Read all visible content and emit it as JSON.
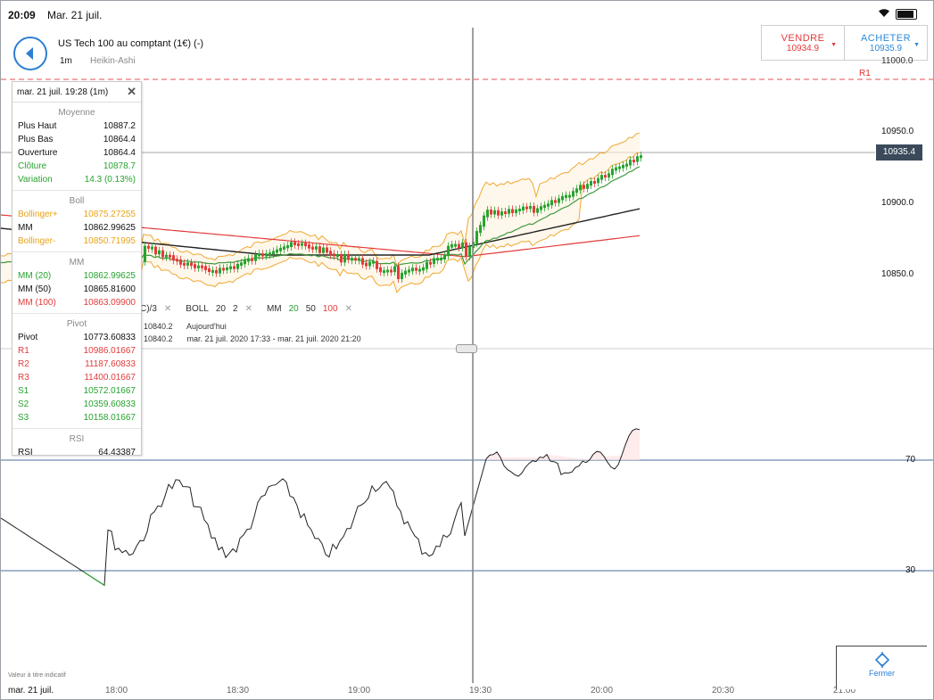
{
  "status_bar": {
    "time": "20:09",
    "date": "Mar. 21 juil."
  },
  "header": {
    "instrument": "US Tech 100 au comptant (1€) (-)",
    "period": "1m",
    "chart_type": "Heikin-Ashi"
  },
  "trade": {
    "sell": {
      "label": "VENDRE",
      "price": "10934.9"
    },
    "buy": {
      "label": "ACHETER",
      "price": "10935.9"
    }
  },
  "price_axis": {
    "top_cut": "11000.0",
    "labels": [
      "10950.0",
      "10900.0",
      "10850.0"
    ],
    "current_price": "10935.4",
    "r1_label": "R1"
  },
  "legend": {
    "prefix": "C)/3",
    "boll_label": "BOLL",
    "boll_params": [
      "20",
      "2"
    ],
    "mm_label": "MM",
    "mm_params": [
      "20",
      "50",
      "100"
    ]
  },
  "info_rows": [
    {
      "value": "10840.2",
      "text": "Aujourd'hui"
    },
    {
      "value": "10840.2",
      "text": "mar. 21 juil. 2020 17:33 - mar. 21 juil. 2020 21:20"
    }
  ],
  "rsi_axis": {
    "upper": "70",
    "lower": "30"
  },
  "time_axis": [
    "18:00",
    "18:30",
    "19:00",
    "19:30",
    "20:00",
    "20:30",
    "21:00"
  ],
  "footer": {
    "date": "mar. 21 juil.",
    "disclaimer": "Valeur à titre indicatif",
    "close_label": "Fermer"
  },
  "tooltip": {
    "header": "mar. 21 juil. 19:28 (1m)",
    "sections": [
      {
        "title": "Moyenne",
        "rows": [
          {
            "label": "Plus Haut",
            "value": "10887.2",
            "color": "black"
          },
          {
            "label": "Plus Bas",
            "value": "10864.4",
            "color": "black"
          },
          {
            "label": "Ouverture",
            "value": "10864.4",
            "color": "black"
          },
          {
            "label": "Clôture",
            "value": "10878.7",
            "color": "green"
          },
          {
            "label": "Variation",
            "value": "14.3 (0.13%)",
            "color": "green"
          }
        ]
      },
      {
        "title": "Boll",
        "rows": [
          {
            "label": "Bollinger+",
            "value": "10875.27255",
            "color": "orange"
          },
          {
            "label": "MM",
            "value": "10862.99625",
            "color": "black"
          },
          {
            "label": "Bollinger-",
            "value": "10850.71995",
            "color": "orange"
          }
        ]
      },
      {
        "title": "MM",
        "rows": [
          {
            "label": "MM (20)",
            "value": "10862.99625",
            "color": "green"
          },
          {
            "label": "MM (50)",
            "value": "10865.81600",
            "color": "black"
          },
          {
            "label": "MM (100)",
            "value": "10863.09900",
            "color": "red"
          }
        ]
      },
      {
        "title": "Pivot",
        "rows": [
          {
            "label": "Pivot",
            "value": "10773.60833",
            "color": "black"
          },
          {
            "label": "R1",
            "value": "10986.01667",
            "color": "red"
          },
          {
            "label": "R2",
            "value": "11187.60833",
            "color": "red"
          },
          {
            "label": "R3",
            "value": "11400.01667",
            "color": "red"
          },
          {
            "label": "S1",
            "value": "10572.01667",
            "color": "green"
          },
          {
            "label": "S2",
            "value": "10359.60833",
            "color": "green"
          },
          {
            "label": "S3",
            "value": "10158.01667",
            "color": "green"
          }
        ]
      },
      {
        "title": "RSI",
        "rows": [
          {
            "label": "RSI",
            "value": "64.43387",
            "color": "black"
          }
        ]
      }
    ]
  },
  "colors": {
    "accent": "#2d7fd3",
    "sell": "#e23b3b",
    "buy": "#2d8ad8",
    "candle_up": "#27a32f",
    "candle_down": "#e23b3b",
    "bollinger": "#f0a830",
    "mm20": "#3f9a3f",
    "mm50": "#222222",
    "mm100": "#e23b3b",
    "rsi_line": "#222222",
    "rsi_levels": "#4a6e9a"
  }
}
